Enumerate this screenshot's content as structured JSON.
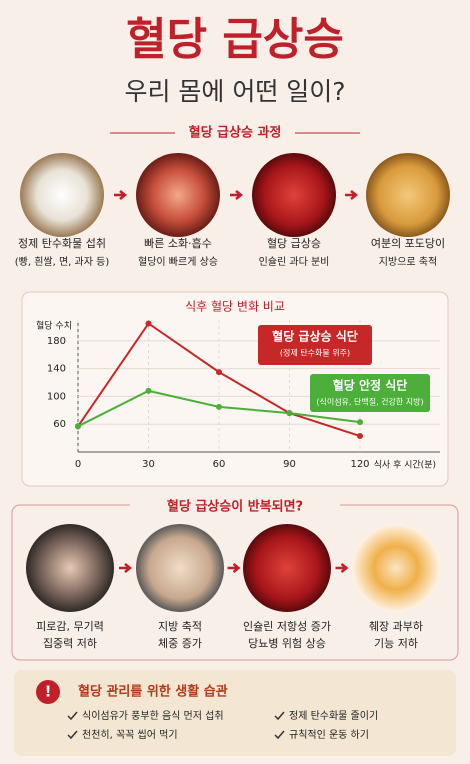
{
  "header": {
    "title": "혈당 급상승",
    "subtitle": "우리 몸에 어떤 일이?"
  },
  "process": {
    "title": "혈당 급상승 과정",
    "steps": [
      {
        "line1": "정제 탄수화물 섭취",
        "line2": "(빵, 흰쌀, 면, 과자 등)"
      },
      {
        "line1": "빠른 소화·흡수",
        "line2": "혈당이 빠르게 상승"
      },
      {
        "line1": "혈당 급상승",
        "line2": "인슐린 과다 분비"
      },
      {
        "line1": "여분의 포도당이",
        "line2": "지방으로 축적"
      }
    ]
  },
  "chart_data": {
    "type": "line",
    "title": "식후 혈당 변화 비교",
    "y_label": "혈당 수치",
    "x_label": "식사 후 시간(분)",
    "x": [
      0,
      30,
      60,
      90,
      120
    ],
    "xlim": [
      0,
      120
    ],
    "xticks": [
      0,
      30,
      60,
      90,
      120
    ],
    "ylim": [
      20,
      210
    ],
    "yticks": [
      60,
      100,
      140,
      180
    ],
    "series": [
      {
        "name": "혈당 급상승 식단",
        "note": "(정제 탄수화물 위주)",
        "color": "#c62828",
        "values": [
          57,
          205,
          135,
          76,
          43
        ]
      },
      {
        "name": "혈당 안정 식단",
        "note": "(식이섬유, 단백질, 건강한 지방)",
        "color": "#4caf3a",
        "values": [
          57,
          108,
          85,
          76,
          63
        ]
      }
    ]
  },
  "repeat": {
    "title": "혈당 급상승이 반복되면?",
    "effects": [
      {
        "line1": "피로감, 무기력",
        "line2": "집중력 저하"
      },
      {
        "line1": "지방 축적",
        "line2": "체중 증가"
      },
      {
        "line1": "인슐린 저항성 증가",
        "line2": "당뇨병 위험 상승"
      },
      {
        "line1": "췌장 과부하",
        "line2": "기능 저하"
      }
    ]
  },
  "habits": {
    "title": "혈당 관리를 위한 생활 습관",
    "items": [
      "식이섬유가 풍부한 음식 먼저 섭취",
      "정제 탄수화물 줄이기",
      "천천히, 꼭꼭 씹어 먹기",
      "규칙적인 운동 하기"
    ]
  }
}
